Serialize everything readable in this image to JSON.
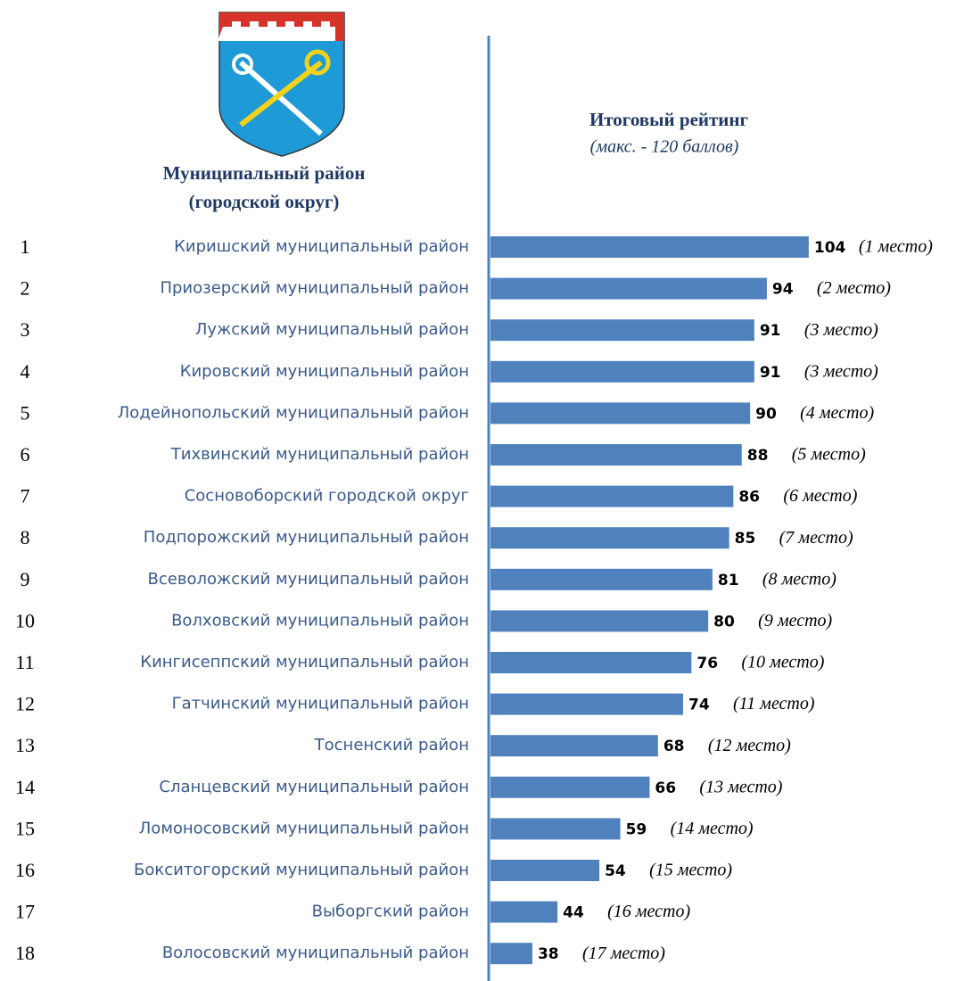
{
  "chart_data": {
    "type": "bar",
    "orientation": "horizontal",
    "title": "Итоговый рейтинг",
    "subtitle": "(макс. - 120 баллов)",
    "category_header": [
      "Муниципальный район",
      "(городской округ)"
    ],
    "ranks": [
      1,
      2,
      3,
      4,
      5,
      6,
      7,
      8,
      9,
      10,
      11,
      12,
      13,
      14,
      15,
      16,
      17,
      18
    ],
    "categories": [
      "Киришский муниципальный район",
      "Приозерский муниципальный район",
      "Лужский муниципальный район",
      "Кировский муниципальный район",
      "Лодейнопольский муниципальный район",
      "Тихвинский муниципальный район",
      "Сосновоборский городской округ",
      "Подпорожский муниципальный район",
      "Всеволожский муниципальный район",
      "Волховский муниципальный район",
      "Кингисеппский муниципальный район",
      "Гатчинский муниципальный район",
      "Тосненский район",
      "Сланцевский муниципальный район",
      "Ломоносовский муниципальный район",
      "Бокситогорский муниципальный район",
      "Выборгский район",
      "Волосовский муниципальный район"
    ],
    "values": [
      104,
      94,
      91,
      91,
      90,
      88,
      86,
      85,
      81,
      80,
      76,
      74,
      68,
      66,
      59,
      54,
      44,
      38
    ],
    "places": [
      "(1 место)",
      "(2 место)",
      "(3 место)",
      "(3 место)",
      "(4 место)",
      "(5 место)",
      "(6 место)",
      "(7 место)",
      "(8 место)",
      "(9 место)",
      "(10 место)",
      "(11 место)",
      "(12 место)",
      "(13 место)",
      "(14 место)",
      "(15 место)",
      "(16 место)",
      "(17 место)"
    ],
    "color": "#4f81bd",
    "xlim": [
      28,
      120
    ]
  }
}
